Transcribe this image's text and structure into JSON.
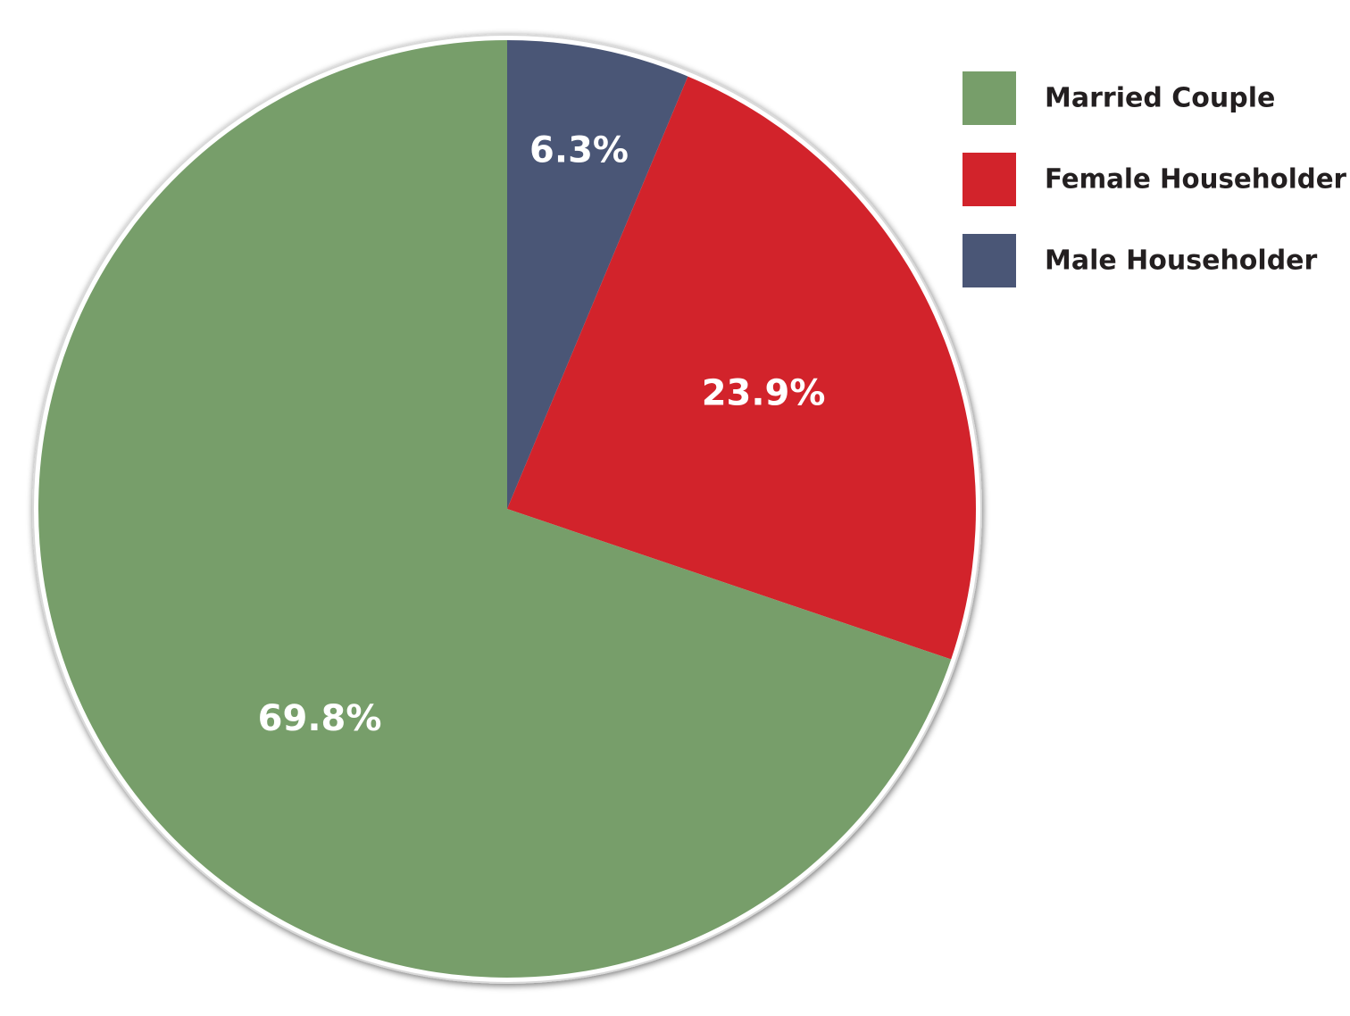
{
  "chart_data": {
    "type": "pie",
    "title": "",
    "start_angle_deg": 0,
    "direction": "clockwise",
    "legend_position": "top-right",
    "slices": [
      {
        "name": "Male Householder",
        "value": 6.3,
        "label": "6.3%",
        "color": "#4a5676"
      },
      {
        "name": "Female Householder",
        "value": 23.9,
        "label": "23.9%",
        "color": "#d2232b"
      },
      {
        "name": "Married Couple",
        "value": 69.8,
        "label": "69.8%",
        "color": "#779e6a"
      }
    ],
    "legend": [
      {
        "name": "Married Couple",
        "color": "#779e6a"
      },
      {
        "name": "Female Householder",
        "color": "#d2232b"
      },
      {
        "name": "Male Householder",
        "color": "#4a5676"
      }
    ]
  }
}
